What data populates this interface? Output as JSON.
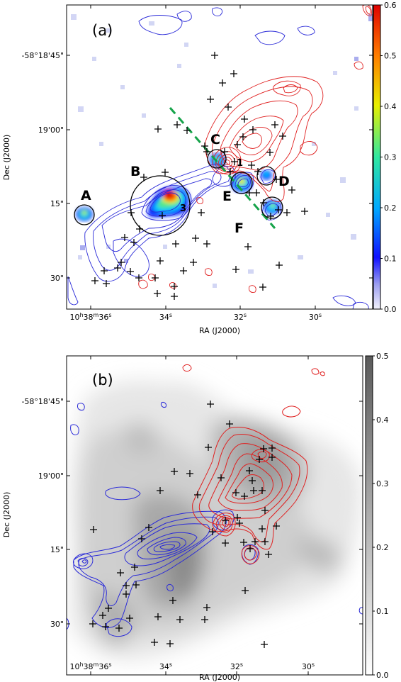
{
  "chart_data": [
    {
      "panel": "(a)",
      "type": "heatmap",
      "xlabel": "RA (J2000)",
      "ylabel": "Dec (J2000)",
      "x_ticks": [
        {
          "main": "10",
          "h": "h",
          "min": "38",
          "m": "m",
          "sec": "36",
          "s": "s"
        },
        {
          "main": "34",
          "s": "s"
        },
        {
          "main": "32",
          "s": "s"
        },
        {
          "main": "30",
          "s": "s"
        }
      ],
      "y_ticks": [
        "-58°18'45\"",
        "19'00\"",
        "15\"",
        "30\""
      ],
      "colorbar": {
        "min": 0.0,
        "max": 0.6,
        "ticks": [
          "0.0",
          "0.1",
          "0.2",
          "0.3",
          "0.4",
          "0.5",
          "0.6"
        ],
        "colormap": "jet"
      },
      "regions": [
        "A",
        "B",
        "C",
        "D",
        "E",
        "F"
      ],
      "numbers": [
        "1",
        "3"
      ],
      "colors": {
        "blue_contour": "#2a2ad8",
        "red_contour": "#e02020",
        "dashed_line": "#16a34a",
        "cross": "#000000"
      }
    },
    {
      "panel": "(b)",
      "type": "heatmap",
      "xlabel": "RA (J2000)",
      "ylabel": "Dec (J2000)",
      "x_ticks": [
        {
          "main": "10",
          "h": "h",
          "min": "38",
          "m": "m",
          "sec": "36",
          "s": "s"
        },
        {
          "main": "34",
          "s": "s"
        },
        {
          "main": "32",
          "s": "s"
        },
        {
          "main": "30",
          "s": "s"
        }
      ],
      "y_ticks": [
        "-58°18'45\"",
        "19'00\"",
        "15\"",
        "30\""
      ],
      "colorbar": {
        "min": 0.0,
        "max": 0.5,
        "ticks": [
          "0.0",
          "0.1",
          "0.2",
          "0.3",
          "0.4",
          "0.5"
        ],
        "colormap": "gray_r"
      },
      "colors": {
        "blue_contour": "#2a2ad8",
        "red_contour": "#e02020",
        "cross": "#000000"
      }
    }
  ]
}
